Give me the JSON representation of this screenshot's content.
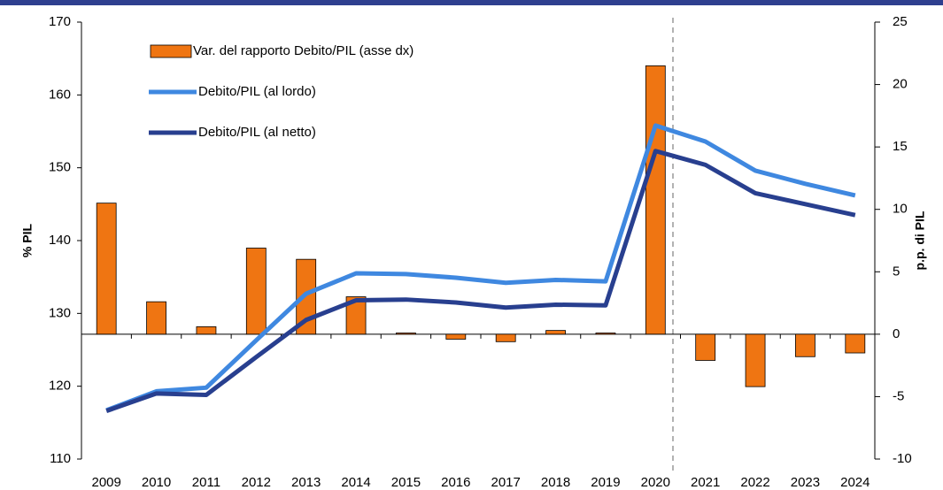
{
  "chart_data": {
    "type": "bar-line",
    "categories": [
      "2009",
      "2010",
      "2011",
      "2012",
      "2013",
      "2014",
      "2015",
      "2016",
      "2017",
      "2018",
      "2019",
      "2020",
      "2021",
      "2022",
      "2023",
      "2024"
    ],
    "y_label": "% PIL",
    "y2_label": "p.p. di PIL",
    "ylim": [
      110,
      170
    ],
    "yticks": [
      110,
      120,
      130,
      140,
      150,
      160,
      170
    ],
    "y2lim": [
      -10,
      25
    ],
    "y2ticks": [
      -10,
      -5,
      0,
      5,
      10,
      15,
      20,
      25
    ],
    "series": [
      {
        "name": "Var. del rapporto Debito/PIL (asse dx)",
        "type": "bar",
        "axis": "y2",
        "color": "#ef7512",
        "values": [
          10.5,
          2.6,
          0.6,
          6.9,
          6.0,
          3.0,
          0.1,
          -0.4,
          -0.6,
          0.3,
          0.1,
          21.5,
          -2.1,
          -4.2,
          -1.8,
          -1.5
        ]
      },
      {
        "name": "Debito/PIL (al lordo)",
        "type": "line",
        "axis": "y",
        "color": "#3f88e0",
        "values": [
          116.7,
          119.3,
          119.8,
          126.3,
          132.7,
          135.5,
          135.4,
          134.9,
          134.2,
          134.6,
          134.4,
          155.8,
          153.6,
          149.6,
          147.8,
          146.2
        ]
      },
      {
        "name": "Debito/PIL (al netto)",
        "type": "line",
        "axis": "y",
        "color": "#283f8f",
        "values": [
          116.6,
          119.0,
          118.8,
          124.0,
          129.1,
          131.8,
          131.9,
          131.5,
          130.8,
          131.2,
          131.1,
          152.3,
          150.4,
          146.5,
          145.0,
          143.5
        ]
      }
    ]
  }
}
